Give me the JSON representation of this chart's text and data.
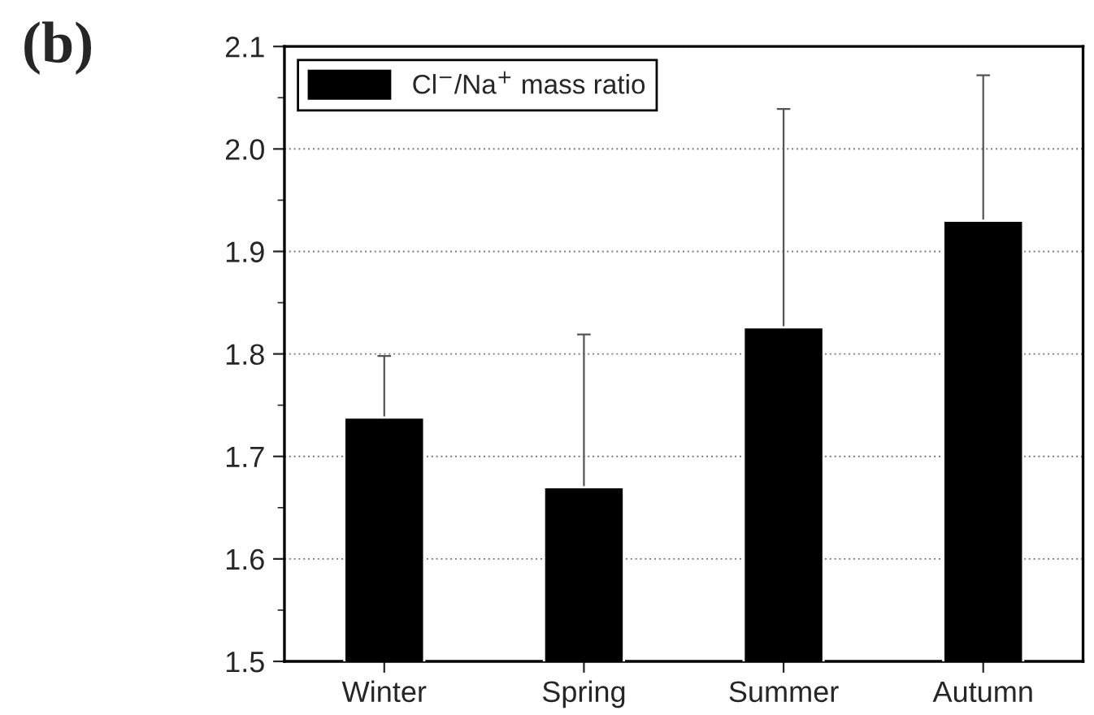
{
  "chart_data": {
    "type": "bar",
    "categories": [
      "Winter",
      "Spring",
      "Summer",
      "Autumn"
    ],
    "series": [
      {
        "name": "Cl$^{−}$/Na$^{+}$ mass ratio",
        "color": "#000000",
        "values": [
          1.738,
          1.67,
          1.826,
          1.93
        ],
        "errors": [
          0.06,
          0.149,
          0.213,
          0.142
        ]
      }
    ],
    "ylim": [
      1.5,
      2.1
    ],
    "yticks": [
      1.5,
      1.6,
      1.7,
      1.8,
      1.9,
      {
        "value": 2.0,
        "label": "2.0"
      },
      2.1
    ],
    "grid": "y",
    "legend": "top left",
    "annotations": [
      "(b)"
    ]
  }
}
